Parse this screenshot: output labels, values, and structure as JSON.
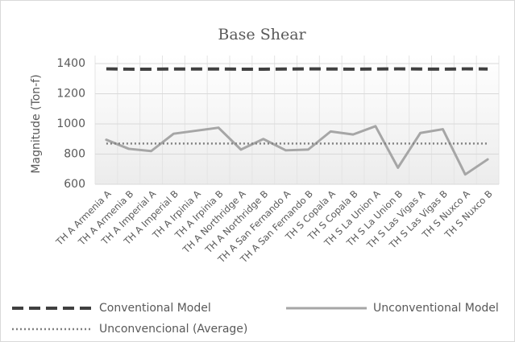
{
  "chart_data": {
    "type": "line",
    "title": "Base Shear",
    "y_label": "Magnitude (Ton-f)",
    "categories": [
      "TH A Armenia A",
      "TH A Armenia B",
      "TH A Imperial A",
      "TH A Imperial B",
      "TH A Irpinia A",
      "TH A Irpinia B",
      "TH A Northridge A",
      "TH A Northridge B",
      "TH A San Fernando A",
      "TH A San Fernando B",
      "TH S Copala A",
      "TH S Copala B",
      "TH S La Union A",
      "TH S La Union B",
      "TH S Las Vigas A",
      "TH S Las Vigas B",
      "TH S Nuxco A",
      "TH S Nuxco B"
    ],
    "series": [
      {
        "name": "Conventional Model",
        "color": "#404040",
        "dash": "dashed",
        "values": [
          1365,
          1363,
          1363,
          1364,
          1364,
          1364,
          1363,
          1363,
          1364,
          1365,
          1364,
          1363,
          1364,
          1365,
          1364,
          1363,
          1365,
          1364
        ]
      },
      {
        "name": "Unconventional Model",
        "color": "#a6a6a6",
        "dash": "solid",
        "values": [
          895,
          835,
          820,
          935,
          955,
          975,
          830,
          900,
          825,
          830,
          950,
          930,
          985,
          710,
          940,
          965,
          665,
          765
        ]
      },
      {
        "name": "Unconvencional (Average)",
        "color": "#808080",
        "dash": "dotted",
        "values": [
          870,
          870,
          870,
          870,
          870,
          870,
          870,
          870,
          870,
          870,
          870,
          870,
          870,
          870,
          870,
          870,
          870,
          870
        ]
      }
    ],
    "ylim": [
      600,
      1400
    ],
    "yticks": [
      600,
      800,
      1000,
      1200,
      1400
    ],
    "grid": true,
    "legend": "bottom"
  }
}
